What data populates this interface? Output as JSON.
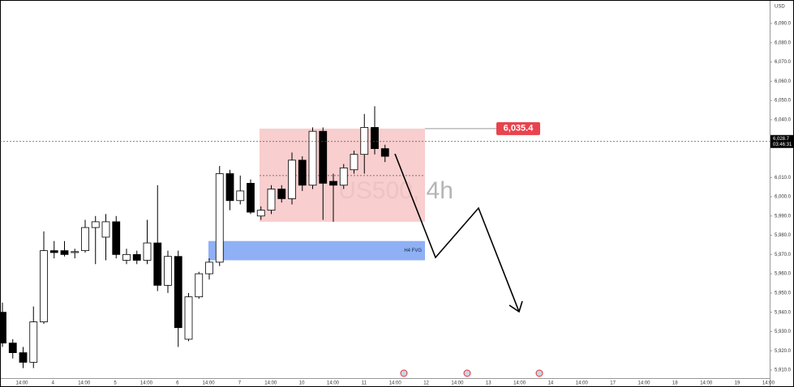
{
  "chart_data": {
    "type": "candlestick",
    "currency": "USD",
    "watermark": "US500, 4h",
    "ylim": [
      5905.8,
      6102.2
    ],
    "yticks": [
      {
        "value": 6090,
        "label": "6,090.0"
      },
      {
        "value": 6080,
        "label": "6,080.0"
      },
      {
        "value": 6070,
        "label": "6,070.0"
      },
      {
        "value": 6060,
        "label": "6,060.0"
      },
      {
        "value": 6050,
        "label": "6,050.0"
      },
      {
        "value": 6040,
        "label": "6,040.0"
      },
      {
        "value": 6030,
        "label": "6,030.0"
      },
      {
        "value": 6010,
        "label": "6,010.0"
      },
      {
        "value": 6000,
        "label": "6,000.0"
      },
      {
        "value": 5990,
        "label": "5,990.0"
      },
      {
        "value": 5980,
        "label": "5,980.0"
      },
      {
        "value": 5970,
        "label": "5,970.0"
      },
      {
        "value": 5960,
        "label": "5,960.0"
      },
      {
        "value": 5950,
        "label": "5,950.0"
      },
      {
        "value": 5940,
        "label": "5,940.0"
      },
      {
        "value": 5930,
        "label": "5,930.0"
      },
      {
        "value": 5920,
        "label": "5,920.0"
      },
      {
        "value": 5910,
        "label": "5,910.0"
      }
    ],
    "x_labels": [
      "14:00",
      "4",
      "14:00",
      "5",
      "14:00",
      "6",
      "14:00",
      "7",
      "14:00",
      "10",
      "14:00",
      "11",
      "14:00",
      "12",
      "14:00",
      "13",
      "14:00",
      "14",
      "14:00",
      "17",
      "14:00",
      "18",
      "14:00",
      "19",
      "14:00"
    ],
    "open": [
      5940,
      5924,
      5919,
      5914,
      5935,
      5972,
      5972,
      5971,
      5972,
      5984,
      5979,
      5987,
      5967,
      5970,
      5967,
      5976,
      5954,
      5969,
      5926,
      5948,
      5960,
      5966,
      6012,
      5998,
      6007,
      5990,
      5993,
      6004,
      5999,
      6019,
      6006,
      6034,
      6008,
      6006,
      6014,
      6022,
      6036,
      6025
    ],
    "high": [
      5945,
      5926,
      5922,
      5943,
      5982,
      5977,
      5977,
      5973,
      5988,
      5990,
      5991,
      5990,
      5973,
      5972,
      5988,
      6006,
      5972,
      5972,
      5950,
      5961,
      5968,
      6016,
      6014,
      6011,
      6009,
      5995,
      6006,
      6006,
      6023,
      6021,
      6036,
      6036,
      6012,
      6017,
      6024,
      6043,
      6047,
      6027
    ],
    "low": [
      5922,
      5916,
      5911,
      5911,
      5934,
      5968,
      5969,
      5968,
      5971,
      5965,
      5967,
      5968,
      5965,
      5965,
      5965,
      5951,
      5950,
      5922,
      5925,
      5947,
      5957,
      5964,
      5993,
      5996,
      5991,
      5988,
      5991,
      5997,
      5996,
      6003,
      6004,
      5988,
      5987,
      6004,
      6012,
      6012,
      6022,
      6018
    ],
    "close": [
      5924,
      5919,
      5914,
      5935,
      5972,
      5971,
      5970,
      5971.5,
      5984,
      5987,
      5987,
      5970,
      5970,
      5967,
      5976,
      5954,
      5969,
      5932,
      5948,
      5960,
      5966,
      6012,
      5998,
      6003,
      5992,
      5993,
      6004,
      5999,
      6019,
      6006,
      6034,
      6007,
      6006,
      6015,
      6022,
      6036,
      6025,
      6021
    ],
    "up_color": "#ffffff",
    "down_color": "#000000",
    "last_price": {
      "value": 6028.7,
      "label": "6,028.7"
    },
    "countdown": "03:46:31",
    "level": {
      "value": 6035.4,
      "label": "6,035.4"
    },
    "range_zone": {
      "top": 6035.4,
      "bottom": 5987,
      "mid": 6011
    },
    "fvg_zone": {
      "label": "H4 FVG",
      "top": 5977,
      "bottom": 5967
    }
  }
}
